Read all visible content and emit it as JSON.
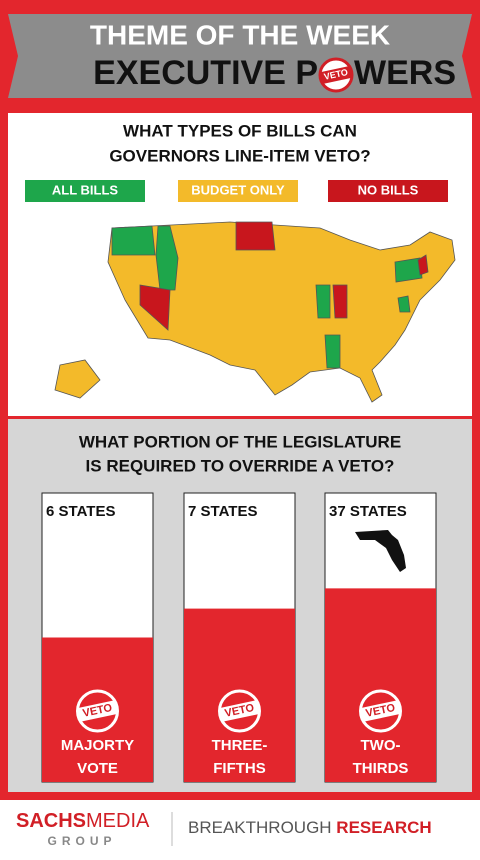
{
  "header": {
    "kicker": "THEME OF THE WEEK",
    "title_start": "EXECUTIVE P",
    "title_end": "WERS",
    "stamp": "VETO"
  },
  "map": {
    "title_lines": [
      "WHAT TYPES OF BILLS CAN",
      "GOVERNORS LINE-ITEM VETO?"
    ],
    "legend": [
      {
        "label": "ALL BILLS",
        "color": "#1ea64b"
      },
      {
        "label": "BUDGET ONLY",
        "color": "#f3ba2a"
      },
      {
        "label": "NO BILLS",
        "color": "#c8161d"
      }
    ]
  },
  "override": {
    "type": "bar",
    "title_lines": [
      "WHAT PORTION OF THE LEGISLATURE",
      "IS REQUIRED TO OVERRIDE A VETO?"
    ],
    "counts": [
      "6 STATES",
      "7 STATES",
      "37 STATES"
    ],
    "categories": [
      [
        "MAJORTY",
        "VOTE"
      ],
      [
        "THREE-",
        "FIFTHS"
      ],
      [
        "TWO-",
        "THIRDS"
      ]
    ],
    "values": [
      50,
      60,
      67
    ],
    "ylim": [
      0,
      100
    ],
    "color": "#e3262d"
  },
  "footer": {
    "brand_bold": "SACHS",
    "brand_rest": "MEDIA",
    "brand_sub": "GROUP",
    "tag_light": "BREAKTHROUGH ",
    "tag_bold": "RESEARCH"
  }
}
